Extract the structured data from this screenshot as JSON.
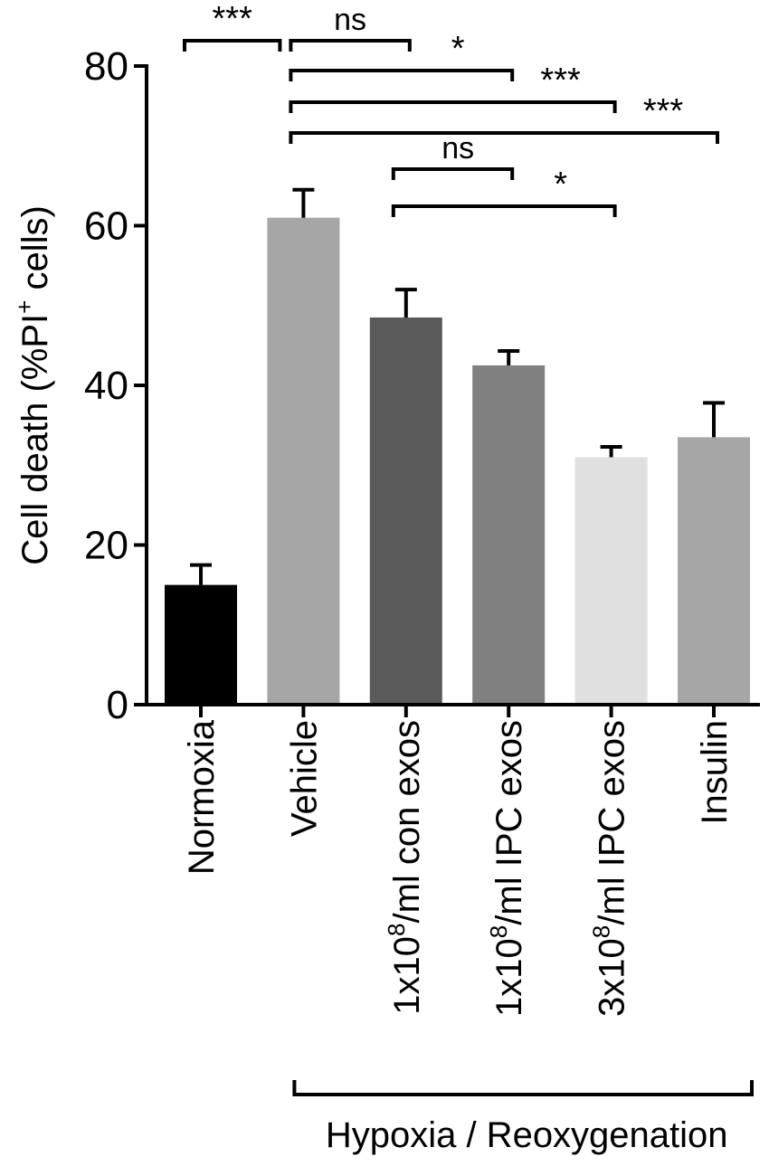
{
  "chart_data": {
    "type": "bar",
    "ylabel": "Cell death (%PI",
    "ylabel_sup": "+",
    "ylabel_end": " cells)",
    "ylim": [
      0,
      80
    ],
    "yticks": [
      0,
      20,
      40,
      60,
      80
    ],
    "grid": false,
    "categories": [
      {
        "prefix": "",
        "sup": "",
        "suffix": "Normoxia"
      },
      {
        "prefix": "",
        "sup": "",
        "suffix": "Vehicle"
      },
      {
        "prefix": "1x10",
        "sup": "8",
        "suffix": "/ml  con exos"
      },
      {
        "prefix": "1x10",
        "sup": "8",
        "suffix": "/ml IPC exos"
      },
      {
        "prefix": "3x10",
        "sup": "8",
        "suffix": "/ml IPC exos"
      },
      {
        "prefix": "",
        "sup": "",
        "suffix": "Insulin"
      }
    ],
    "values": [
      15,
      61,
      48.5,
      42.5,
      31,
      33.5
    ],
    "errors": [
      2.5,
      3.5,
      3.5,
      1.8,
      1.3,
      4.3
    ],
    "colors": [
      "#000000",
      "#a6a6a6",
      "#5a5a5a",
      "#808080",
      "#e0e0e0",
      "#a6a6a6"
    ],
    "significance": [
      {
        "from": 0,
        "to": 1,
        "level": 0,
        "label": "***"
      },
      {
        "from": 1,
        "to": 2,
        "level": 0,
        "label": "ns"
      },
      {
        "from": 1,
        "to": 3,
        "level": 1,
        "label": "*"
      },
      {
        "from": 1,
        "to": 4,
        "level": 2,
        "label": "***"
      },
      {
        "from": 1,
        "to": 5,
        "level": 3,
        "label": "***"
      },
      {
        "from": 2,
        "to": 3,
        "level": 4,
        "label": "ns"
      },
      {
        "from": 2,
        "to": 4,
        "level": 5,
        "label": "*"
      }
    ],
    "group_bracket": {
      "from": 1,
      "to": 5,
      "label": "Hypoxia / Reoxygenation"
    }
  }
}
